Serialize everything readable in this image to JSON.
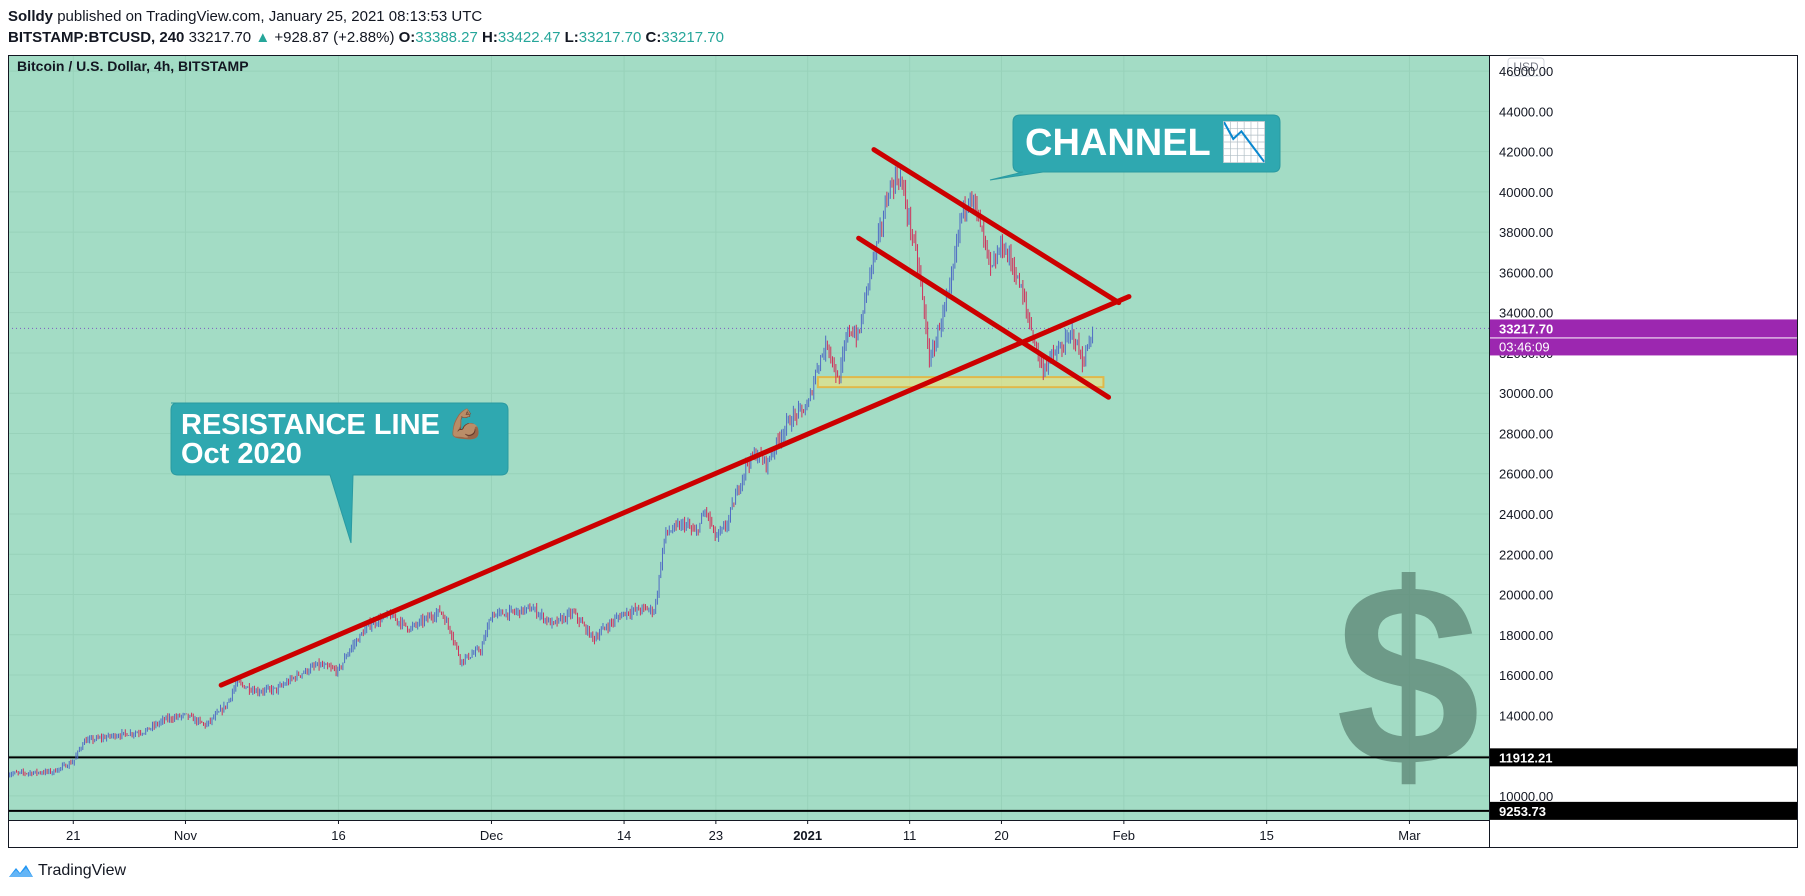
{
  "header": {
    "author": "Solldy",
    "published_text": "published on TradingView.com, January 25, 2021 08:13:53 UTC",
    "symbol": "BITSTAMP:BTCUSD, 240",
    "price": "33217.70",
    "change": "+928.87 (+2.88%)",
    "o_label": "O:",
    "o_value": "33388.27",
    "h_label": "H:",
    "h_value": "33422.47",
    "l_label": "L:",
    "l_value": "33217.70",
    "c_label": "C:",
    "c_value": "33217.70"
  },
  "footer": {
    "brand": "TradingView"
  },
  "colors": {
    "background": "#a3dcc5",
    "trendline": "#cc0000",
    "callout": "#2fa8b0",
    "candle_up": "#4f6bc4",
    "candle_down": "#d0305a",
    "price_tag": "#9c27b0",
    "level_line": "#000000",
    "zone": "#f2e27a"
  },
  "chart_data": {
    "type": "candlestick",
    "title": "Bitcoin / U.S. Dollar, 4h, BITSTAMP",
    "currency_label": "USD",
    "ylim": [
      8800,
      46800
    ],
    "y_ticks": [
      "10000.00",
      "12000.00",
      "14000.00",
      "16000.00",
      "18000.00",
      "20000.00",
      "22000.00",
      "24000.00",
      "26000.00",
      "28000.00",
      "30000.00",
      "32000.00",
      "34000.00",
      "36000.00",
      "38000.00",
      "40000.00",
      "42000.00",
      "44000.00",
      "46000.00"
    ],
    "y_tick_values": [
      10000,
      12000,
      14000,
      16000,
      18000,
      20000,
      22000,
      24000,
      26000,
      28000,
      30000,
      32000,
      34000,
      36000,
      38000,
      40000,
      42000,
      44000,
      46000
    ],
    "x_ticks": [
      {
        "label": "21",
        "day": 0,
        "bold": false
      },
      {
        "label": "Nov",
        "day": 11,
        "bold": false
      },
      {
        "label": "16",
        "day": 26,
        "bold": false
      },
      {
        "label": "Dec",
        "day": 41,
        "bold": false
      },
      {
        "label": "14",
        "day": 54,
        "bold": false
      },
      {
        "label": "23",
        "day": 63,
        "bold": false
      },
      {
        "label": "2021",
        "day": 72,
        "bold": true
      },
      {
        "label": "11",
        "day": 82,
        "bold": false
      },
      {
        "label": "20",
        "day": 91,
        "bold": false
      },
      {
        "label": "Feb",
        "day": 103,
        "bold": false
      },
      {
        "label": "15",
        "day": 117,
        "bold": false
      },
      {
        "label": "Mar",
        "day": 131,
        "bold": false
      }
    ],
    "x_start_day": -6.4,
    "x_end_day": 138.8,
    "price_path": [
      [
        -6.4,
        11100
      ],
      [
        -2,
        11200
      ],
      [
        0,
        11700
      ],
      [
        1,
        12700
      ],
      [
        4,
        13000
      ],
      [
        7,
        13200
      ],
      [
        9,
        13800
      ],
      [
        11,
        14000
      ],
      [
        13,
        13500
      ],
      [
        15,
        14500
      ],
      [
        16,
        15600
      ],
      [
        18,
        15200
      ],
      [
        20,
        15300
      ],
      [
        22,
        16000
      ],
      [
        24,
        16500
      ],
      [
        26,
        16200
      ],
      [
        27,
        17200
      ],
      [
        29,
        18500
      ],
      [
        31,
        19000
      ],
      [
        33,
        18300
      ],
      [
        36,
        19200
      ],
      [
        37,
        18200
      ],
      [
        38,
        16700
      ],
      [
        40,
        17300
      ],
      [
        41,
        19000
      ],
      [
        43,
        19100
      ],
      [
        45,
        19300
      ],
      [
        47,
        18500
      ],
      [
        49,
        19100
      ],
      [
        51,
        17800
      ],
      [
        52,
        18300
      ],
      [
        54,
        19100
      ],
      [
        56,
        19300
      ],
      [
        57,
        19200
      ],
      [
        58,
        23000
      ],
      [
        59,
        23300
      ],
      [
        60,
        23500
      ],
      [
        61,
        23000
      ],
      [
        62,
        24200
      ],
      [
        63,
        22800
      ],
      [
        64,
        23400
      ],
      [
        66,
        26500
      ],
      [
        67,
        27000
      ],
      [
        68,
        26500
      ],
      [
        69,
        27600
      ],
      [
        70,
        28500
      ],
      [
        71,
        29000
      ],
      [
        72,
        29300
      ],
      [
        73,
        31500
      ],
      [
        74,
        32500
      ],
      [
        75,
        30500
      ],
      [
        76,
        33200
      ],
      [
        77,
        32800
      ],
      [
        78,
        35800
      ],
      [
        79,
        37800
      ],
      [
        80,
        40200
      ],
      [
        81,
        40800
      ],
      [
        82,
        38500
      ],
      [
        83,
        35800
      ],
      [
        84,
        31500
      ],
      [
        85,
        33500
      ],
      [
        86,
        35200
      ],
      [
        87,
        38800
      ],
      [
        88,
        40000
      ],
      [
        89,
        38200
      ],
      [
        90,
        36000
      ],
      [
        91,
        37400
      ],
      [
        92,
        36500
      ],
      [
        93,
        35000
      ],
      [
        94,
        33000
      ],
      [
        95,
        31200
      ],
      [
        96,
        31800
      ],
      [
        97,
        32300
      ],
      [
        98,
        33000
      ],
      [
        99,
        31500
      ],
      [
        100,
        33217.7
      ]
    ],
    "horizontal_levels": [
      {
        "value": 11912.21,
        "label": "11912.21"
      },
      {
        "value": 9253.73,
        "label": "9253.73"
      }
    ],
    "last_price": {
      "value": 33217.7,
      "label": "33217.70",
      "countdown": "03:46:09"
    },
    "support_zone": {
      "x_start_day": 73,
      "x_end_day": 101,
      "y_low": 30300,
      "y_high": 30800
    },
    "trendlines": [
      {
        "name": "resistance-line",
        "points": [
          [
            14.5,
            15500
          ],
          [
            103.5,
            34800
          ]
        ]
      },
      {
        "name": "channel-upper",
        "points": [
          [
            78.5,
            42100
          ],
          [
            102.5,
            34500
          ]
        ]
      },
      {
        "name": "channel-lower",
        "points": [
          [
            77,
            37700
          ],
          [
            101.5,
            29800
          ]
        ]
      }
    ],
    "annotations": [
      {
        "name": "resistance-callout",
        "text_line1": "RESISTANCE LINE 💪🏽",
        "text_line2": "Oct 2020"
      },
      {
        "name": "channel-callout",
        "text": "CHANNEL 📉"
      }
    ],
    "watermark_symbol": "$"
  }
}
